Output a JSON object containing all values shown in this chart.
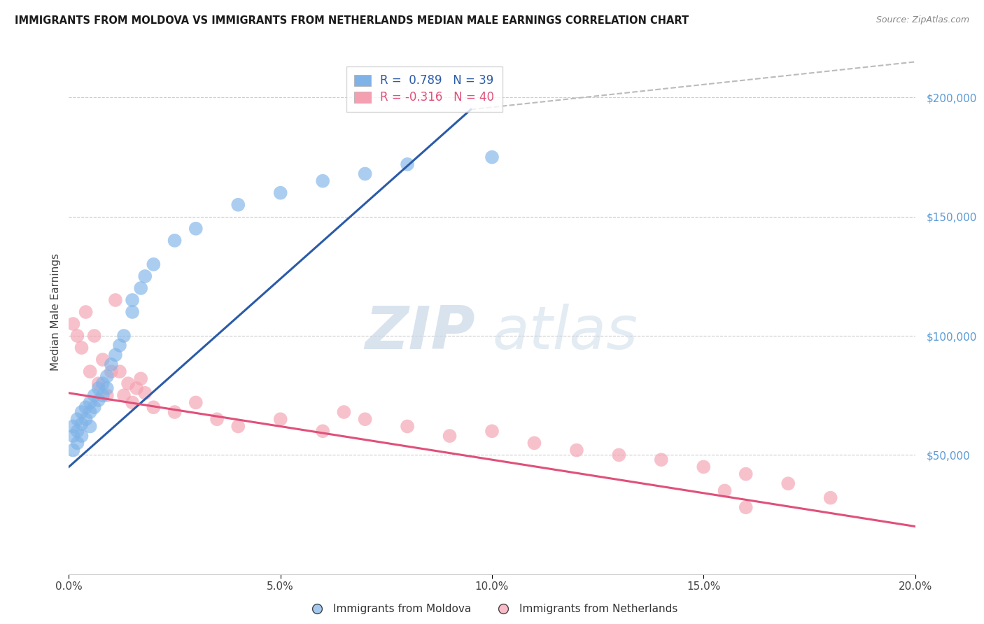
{
  "title": "IMMIGRANTS FROM MOLDOVA VS IMMIGRANTS FROM NETHERLANDS MEDIAN MALE EARNINGS CORRELATION CHART",
  "source": "Source: ZipAtlas.com",
  "ylabel": "Median Male Earnings",
  "xlim": [
    0,
    0.2
  ],
  "ylim": [
    0,
    220000
  ],
  "yticks": [
    50000,
    100000,
    150000,
    200000
  ],
  "xticks": [
    0.0,
    0.05,
    0.1,
    0.15,
    0.2
  ],
  "R_moldova": 0.789,
  "N_moldova": 39,
  "R_netherlands": -0.316,
  "N_netherlands": 40,
  "color_moldova": "#7FB3E8",
  "color_netherlands": "#F4A0B0",
  "line_color_moldova": "#2B5BA8",
  "line_color_netherlands": "#E0507A",
  "watermark_ZIP": "ZIP",
  "watermark_atlas": "atlas",
  "background_color": "#FFFFFF",
  "legend_moldova": "Immigrants from Moldova",
  "legend_netherlands": "Immigrants from Netherlands",
  "moldova_x": [
    0.001,
    0.001,
    0.001,
    0.002,
    0.002,
    0.002,
    0.003,
    0.003,
    0.003,
    0.004,
    0.004,
    0.005,
    0.005,
    0.005,
    0.006,
    0.006,
    0.007,
    0.007,
    0.008,
    0.008,
    0.009,
    0.009,
    0.01,
    0.011,
    0.012,
    0.013,
    0.015,
    0.015,
    0.017,
    0.018,
    0.02,
    0.025,
    0.03,
    0.04,
    0.05,
    0.06,
    0.07,
    0.08,
    0.1
  ],
  "moldova_y": [
    62000,
    58000,
    52000,
    65000,
    60000,
    55000,
    68000,
    63000,
    58000,
    70000,
    65000,
    72000,
    68000,
    62000,
    75000,
    70000,
    78000,
    73000,
    80000,
    75000,
    83000,
    78000,
    88000,
    92000,
    96000,
    100000,
    110000,
    115000,
    120000,
    125000,
    130000,
    140000,
    145000,
    155000,
    160000,
    165000,
    168000,
    172000,
    175000
  ],
  "netherlands_x": [
    0.001,
    0.002,
    0.003,
    0.004,
    0.005,
    0.006,
    0.007,
    0.008,
    0.009,
    0.01,
    0.011,
    0.012,
    0.013,
    0.014,
    0.015,
    0.016,
    0.017,
    0.018,
    0.02,
    0.025,
    0.03,
    0.035,
    0.04,
    0.05,
    0.06,
    0.065,
    0.07,
    0.08,
    0.09,
    0.1,
    0.11,
    0.12,
    0.13,
    0.14,
    0.15,
    0.155,
    0.16,
    0.17,
    0.18,
    0.16
  ],
  "netherlands_y": [
    105000,
    100000,
    95000,
    110000,
    85000,
    100000,
    80000,
    90000,
    75000,
    85000,
    115000,
    85000,
    75000,
    80000,
    72000,
    78000,
    82000,
    76000,
    70000,
    68000,
    72000,
    65000,
    62000,
    65000,
    60000,
    68000,
    65000,
    62000,
    58000,
    60000,
    55000,
    52000,
    50000,
    48000,
    45000,
    35000,
    42000,
    38000,
    32000,
    28000
  ],
  "dot_size": 200
}
